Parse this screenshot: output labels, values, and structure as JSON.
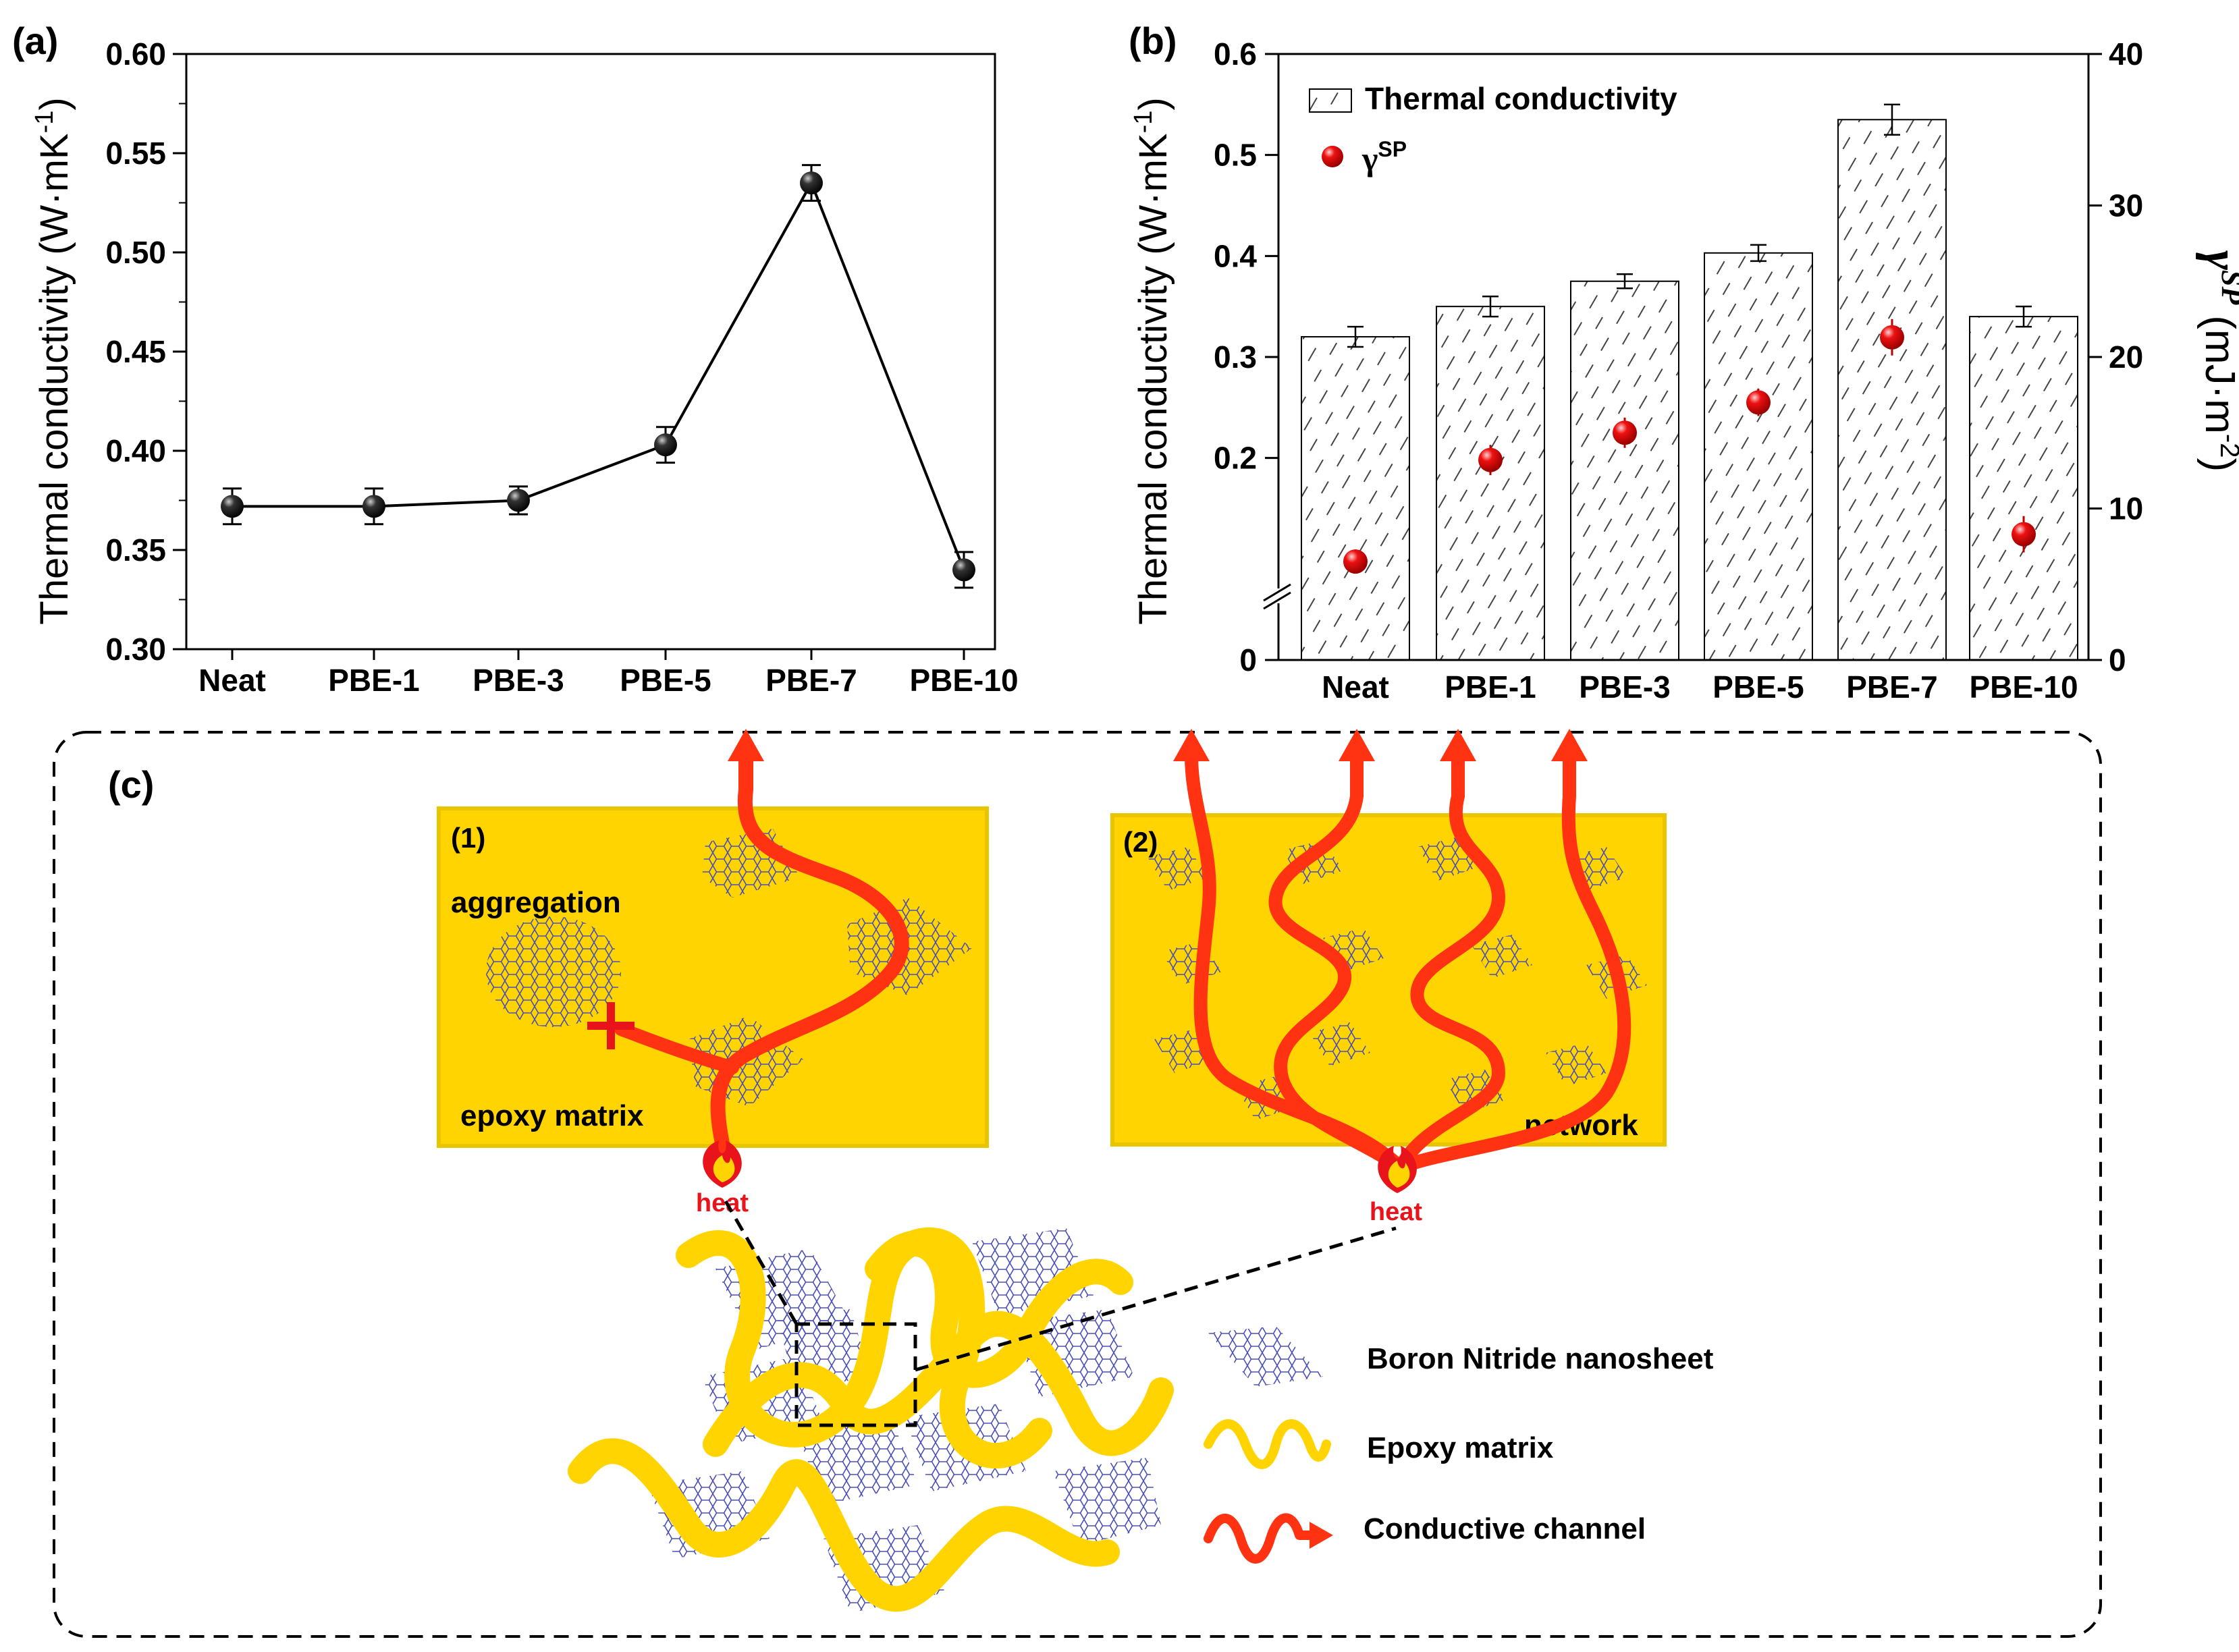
{
  "colors": {
    "matrix_yellow": "#FFD400",
    "matrix_border": "#E8C500",
    "channel_red": "#FF3311",
    "heat_red": "#E8131B",
    "bn_blue": "#4A4FB5",
    "marker_black": "#111111",
    "marker_red": "#E5090C"
  },
  "panel_a": {
    "label": "(a)",
    "ylabel": "Thermal conductivity (W·mK",
    "ylabel_sup": "-1",
    "ylabel_close": ")"
  },
  "panel_b": {
    "label": "(b)",
    "ylabel_left": "Thermal conductivity (W·mK",
    "ylabel_left_sup": "-1",
    "ylabel_left_close": ")",
    "ylabel_right_sym": "γ",
    "ylabel_right_sup": "SP",
    "ylabel_right_unit": "(mJ·m",
    "ylabel_right_unit_sup": "-2",
    "ylabel_right_close": ")",
    "legend_bar": "Thermal conductivity",
    "legend_dot_sym": "γ",
    "legend_dot_sup": "SP"
  },
  "chart_data": [
    {
      "id": "a",
      "type": "line",
      "categories": [
        "Neat",
        "PBE-1",
        "PBE-3",
        "PBE-5",
        "PBE-7",
        "PBE-10"
      ],
      "values": [
        0.372,
        0.372,
        0.375,
        0.403,
        0.535,
        0.34
      ],
      "errors": [
        0.009,
        0.009,
        0.007,
        0.009,
        0.009,
        0.009
      ],
      "ylim": [
        0.3,
        0.6
      ],
      "yticks": [
        "0.30",
        "0.35",
        "0.40",
        "0.45",
        "0.50",
        "0.55",
        "0.60"
      ],
      "ylabel": "Thermal conductivity (W·mK-1)"
    },
    {
      "id": "b",
      "type": "bar",
      "categories": [
        "Neat",
        "PBE-1",
        "PBE-3",
        "PBE-5",
        "PBE-7",
        "PBE-10"
      ],
      "series": [
        {
          "name": "Thermal conductivity",
          "axis": "left",
          "values": [
            0.32,
            0.35,
            0.375,
            0.403,
            0.535,
            0.34
          ],
          "errors": [
            0.01,
            0.01,
            0.007,
            0.008,
            0.015,
            0.01
          ]
        },
        {
          "name": "γSP",
          "axis": "right",
          "values": [
            6.5,
            13.2,
            15.0,
            17.0,
            21.3,
            8.3
          ],
          "errors": [
            0.8,
            1.0,
            1.0,
            0.9,
            1.2,
            1.2
          ]
        }
      ],
      "ylim_left": [
        0,
        0.6
      ],
      "yticks_left": [
        "0",
        "0.2",
        "0.3",
        "0.4",
        "0.5",
        "0.6"
      ],
      "ylim_right": [
        0,
        40
      ],
      "yticks_right": [
        "0",
        "10",
        "20",
        "30",
        "40"
      ],
      "axis_break": true
    }
  ],
  "panel_c": {
    "label": "(c)",
    "box1_label": "(1)",
    "box1_aggregation": "aggregation",
    "box1_matrix": "epoxy matrix",
    "box1_heat": "heat",
    "box2_label": "(2)",
    "box2_network": "network",
    "box2_heat": "heat",
    "legend": [
      {
        "icon": "boron-nitride-icon",
        "label": "Boron Nitride nanosheet"
      },
      {
        "icon": "epoxy-matrix-icon",
        "label": "Epoxy matrix"
      },
      {
        "icon": "conductive-channel-icon",
        "label": "Conductive channel"
      }
    ]
  }
}
